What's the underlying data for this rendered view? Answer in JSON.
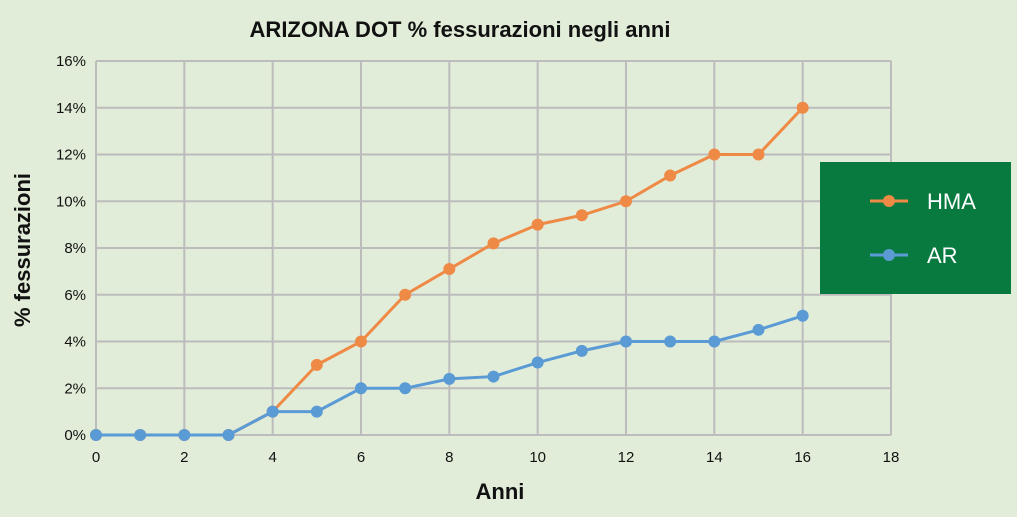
{
  "chart_data": {
    "type": "line",
    "title": "ARIZONA DOT % fessurazioni negli anni",
    "xlabel": "Anni",
    "ylabel": "% fessurazioni",
    "xlim": [
      0,
      18
    ],
    "ylim": [
      0,
      16
    ],
    "x_ticks": [
      "0",
      "2",
      "4",
      "6",
      "8",
      "10",
      "12",
      "14",
      "16",
      "18"
    ],
    "y_ticks": [
      "0%",
      "2%",
      "4%",
      "6%",
      "8%",
      "10%",
      "12%",
      "14%",
      "16%"
    ],
    "grid": true,
    "legend_position": "right",
    "series": [
      {
        "name": "HMA",
        "color": "#ee8a45",
        "x": [
          0,
          1,
          2,
          3,
          4,
          5,
          6,
          7,
          8,
          9,
          10,
          11,
          12,
          13,
          14,
          15,
          16
        ],
        "y": [
          0,
          0,
          0,
          0,
          1,
          3,
          4,
          6,
          7.1,
          8.2,
          9,
          9.4,
          10,
          11.1,
          12,
          12,
          14
        ]
      },
      {
        "name": "AR",
        "color": "#5b9bd5",
        "x": [
          0,
          1,
          2,
          3,
          4,
          5,
          6,
          7,
          8,
          9,
          10,
          11,
          12,
          13,
          14,
          15,
          16
        ],
        "y": [
          0,
          0,
          0,
          0,
          1,
          1,
          2,
          2,
          2.4,
          2.5,
          3.1,
          3.6,
          4,
          4,
          4,
          4.5,
          5.1
        ]
      }
    ]
  },
  "colors": {
    "background": "#e2edd9",
    "grid": "#bcbcbc",
    "legend_bg": "#087a40"
  }
}
